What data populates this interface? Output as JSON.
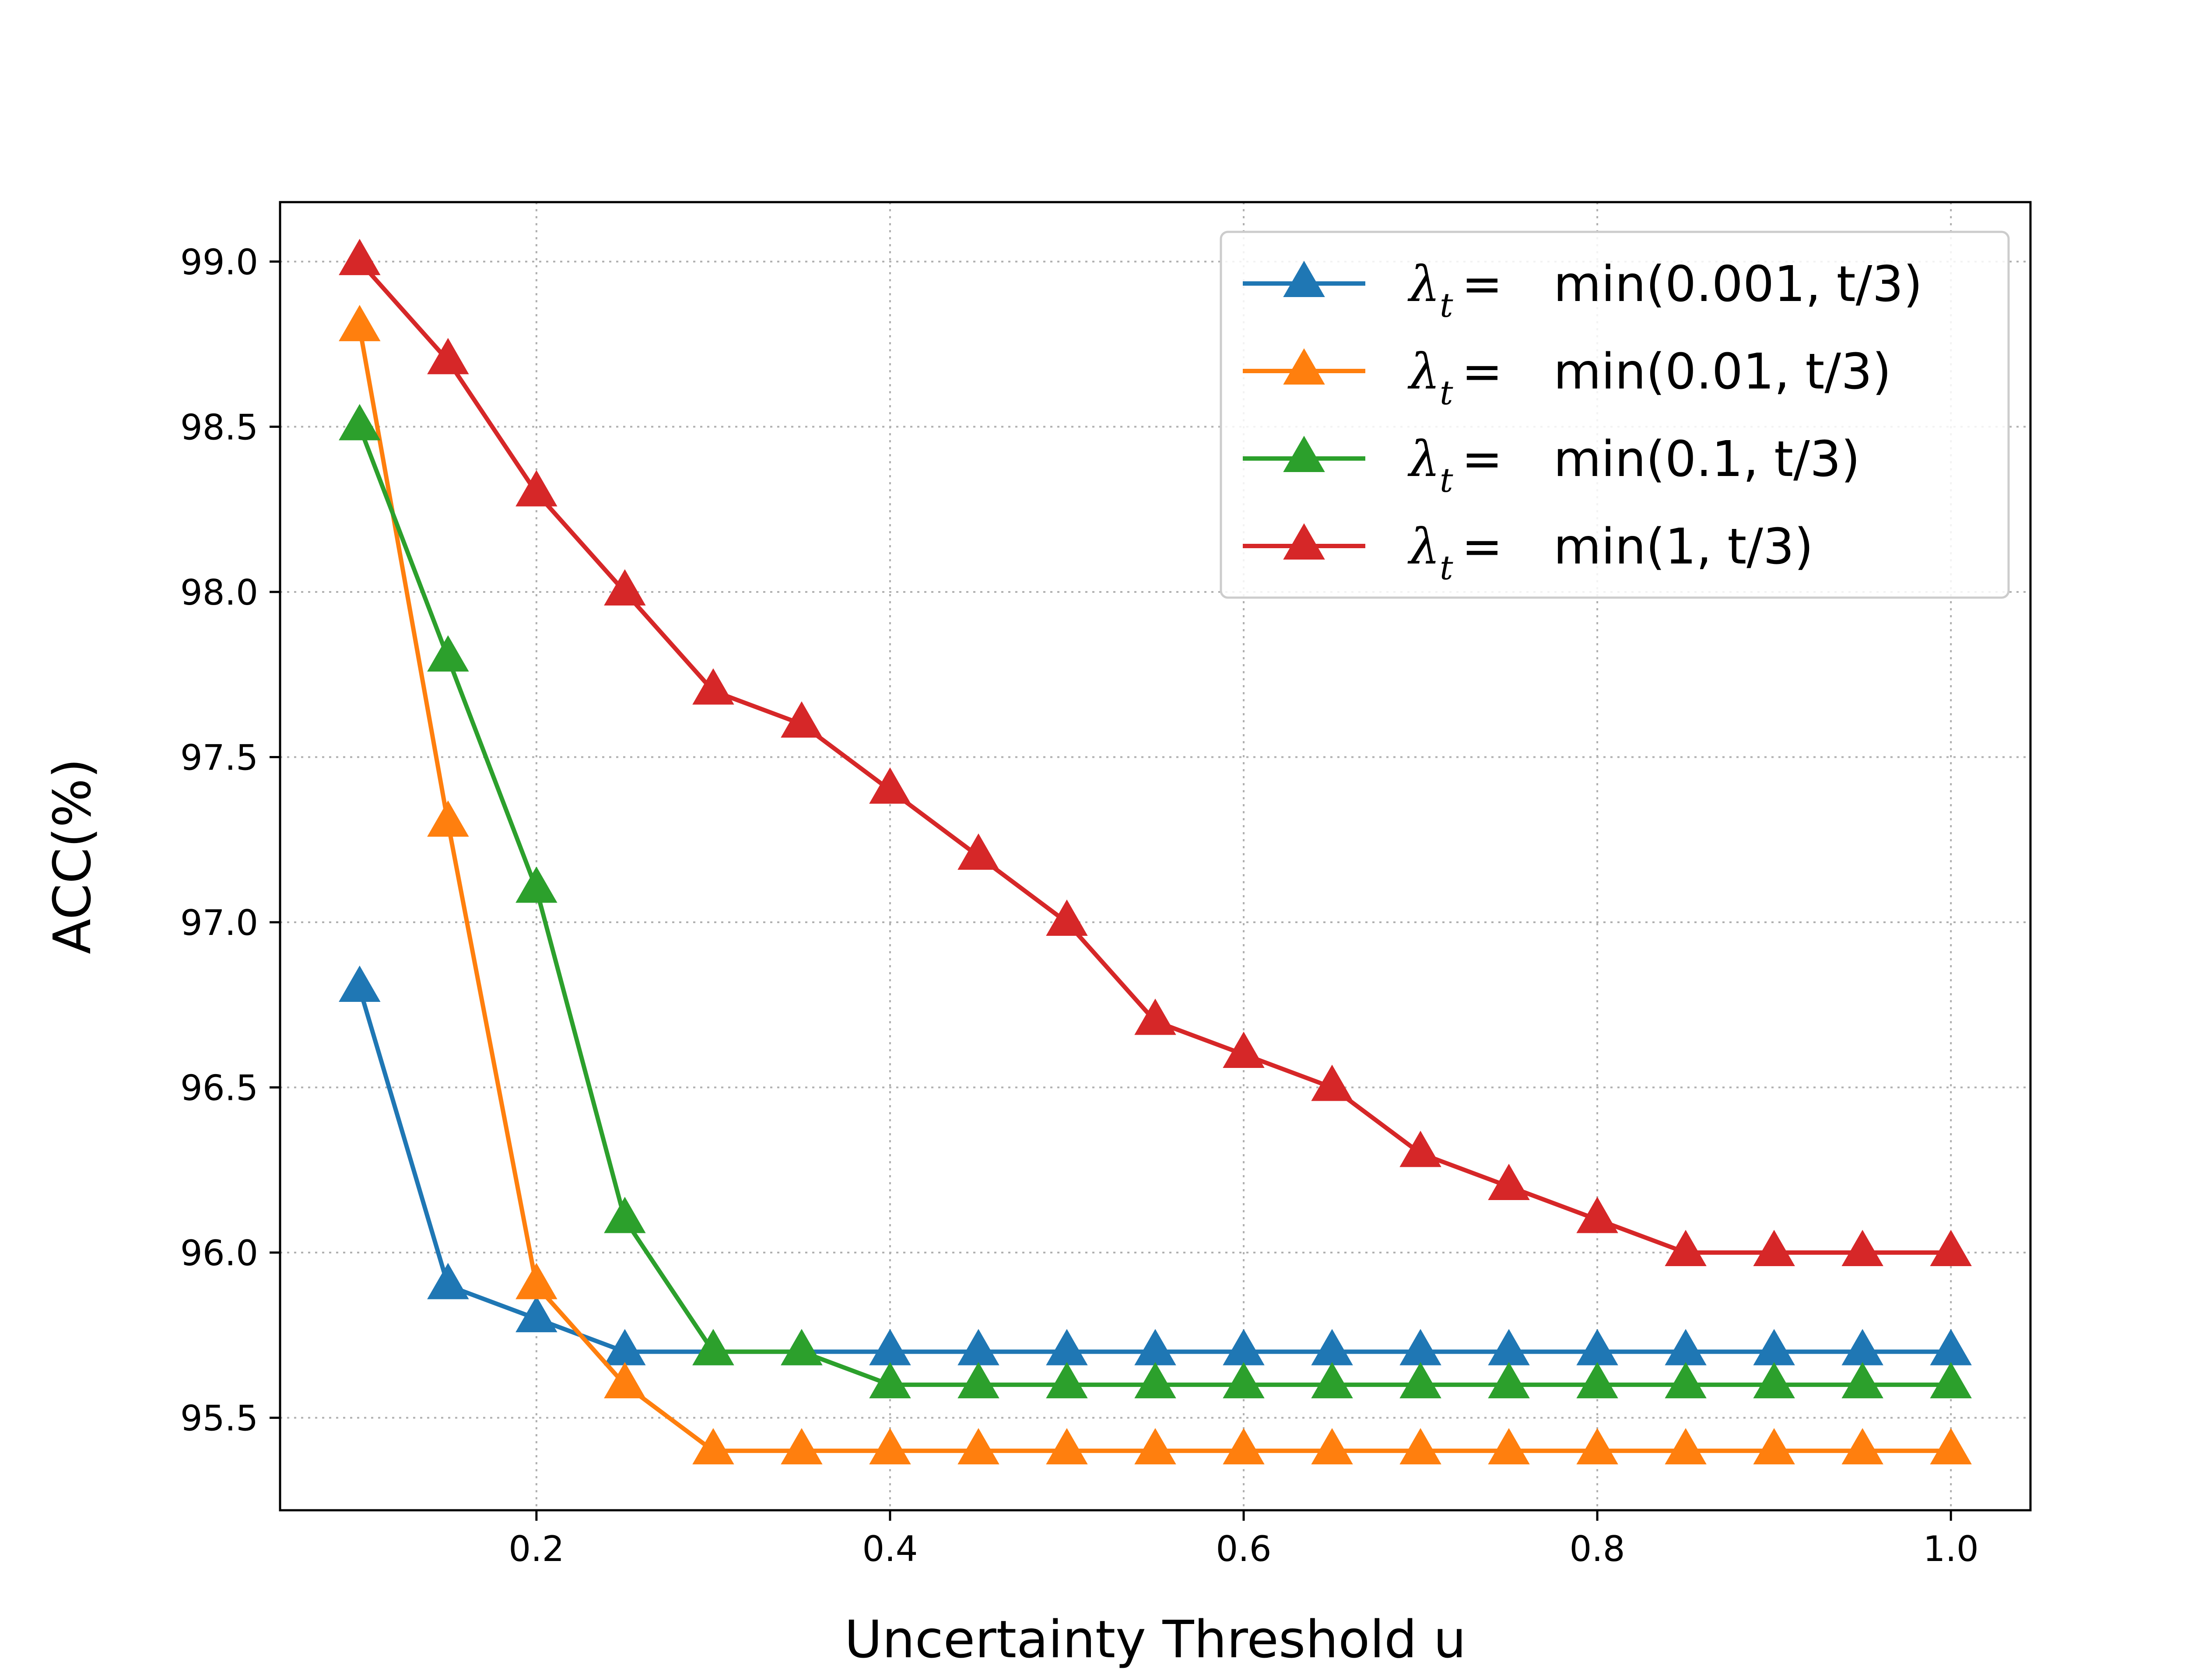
{
  "chart_data": {
    "type": "line",
    "title": "",
    "xlabel": "Uncertainty Threshold u",
    "ylabel": "ACC(%)",
    "xlim": [
      0.055,
      1.045
    ],
    "ylim": [
      95.22,
      99.18
    ],
    "xticks": [
      0.2,
      0.4,
      0.6,
      0.8,
      1.0
    ],
    "xtick_labels": [
      "0.2",
      "0.4",
      "0.6",
      "0.8",
      "1.0"
    ],
    "yticks": [
      95.5,
      96.0,
      96.5,
      97.0,
      97.5,
      98.0,
      98.5,
      99.0
    ],
    "ytick_labels": [
      "95.5",
      "96.0",
      "96.5",
      "97.0",
      "97.5",
      "98.0",
      "98.5",
      "99.0"
    ],
    "grid": true,
    "legend_position": "top-right",
    "marker": "triangle",
    "x": [
      0.1,
      0.15,
      0.2,
      0.25,
      0.3,
      0.35,
      0.4,
      0.45,
      0.5,
      0.55,
      0.6,
      0.65,
      0.7,
      0.75,
      0.8,
      0.85,
      0.9,
      0.95,
      1.0
    ],
    "series": [
      {
        "name": "min(0.001, t/3)",
        "color": "#1f77b4",
        "values": [
          96.8,
          95.9,
          95.8,
          95.7,
          95.7,
          95.7,
          95.7,
          95.7,
          95.7,
          95.7,
          95.7,
          95.7,
          95.7,
          95.7,
          95.7,
          95.7,
          95.7,
          95.7,
          95.7
        ]
      },
      {
        "name": "min(0.01, t/3)",
        "color": "#ff7f0e",
        "values": [
          98.8,
          97.3,
          95.9,
          95.6,
          95.4,
          95.4,
          95.4,
          95.4,
          95.4,
          95.4,
          95.4,
          95.4,
          95.4,
          95.4,
          95.4,
          95.4,
          95.4,
          95.4,
          95.4
        ]
      },
      {
        "name": "min(0.1, t/3)",
        "color": "#2ca02c",
        "values": [
          98.5,
          97.8,
          97.1,
          96.1,
          95.7,
          95.7,
          95.6,
          95.6,
          95.6,
          95.6,
          95.6,
          95.6,
          95.6,
          95.6,
          95.6,
          95.6,
          95.6,
          95.6,
          95.6
        ]
      },
      {
        "name": "min(1, t/3)",
        "color": "#d62728",
        "values": [
          99.0,
          98.7,
          98.3,
          98.0,
          97.7,
          97.6,
          97.4,
          97.2,
          97.0,
          96.7,
          96.6,
          96.5,
          96.3,
          96.2,
          96.1,
          96.0,
          96.0,
          96.0,
          96.0
        ]
      }
    ],
    "legend_prefix": "λ",
    "legend_subscript": "t",
    "legend_equals": "="
  }
}
